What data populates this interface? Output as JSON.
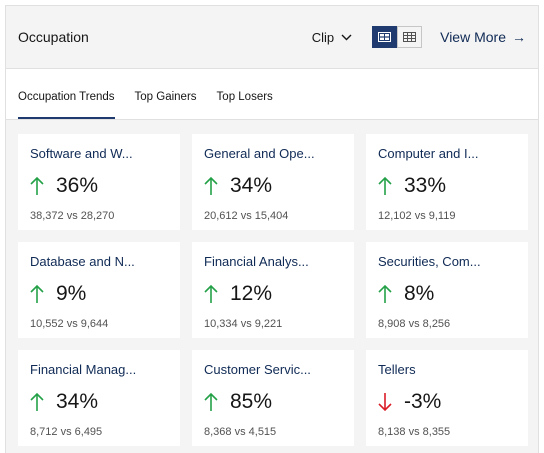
{
  "header": {
    "title": "Occupation",
    "clip_label": "Clip",
    "view_more_label": "View More",
    "arrow_glyph": "→"
  },
  "tabs": [
    {
      "label": "Occupation Trends",
      "active": true
    },
    {
      "label": "Top Gainers",
      "active": false
    },
    {
      "label": "Top Losers",
      "active": false
    }
  ],
  "colors": {
    "accent": "#1f3a6e",
    "up": "#24a148",
    "down": "#da1e28",
    "link": "#0f2a55"
  },
  "cards": [
    {
      "title": "Software and W...",
      "change": "36%",
      "direction": "up",
      "compare": "38,372 vs 28,270"
    },
    {
      "title": "General and Ope...",
      "change": "34%",
      "direction": "up",
      "compare": "20,612 vs 15,404"
    },
    {
      "title": "Computer and I...",
      "change": "33%",
      "direction": "up",
      "compare": "12,102 vs 9,119"
    },
    {
      "title": "Database and N...",
      "change": "9%",
      "direction": "up",
      "compare": "10,552 vs 9,644"
    },
    {
      "title": "Financial Analys...",
      "change": "12%",
      "direction": "up",
      "compare": "10,334 vs 9,221"
    },
    {
      "title": "Securities, Com...",
      "change": "8%",
      "direction": "up",
      "compare": "8,908 vs 8,256"
    },
    {
      "title": "Financial Manag...",
      "change": "34%",
      "direction": "up",
      "compare": "8,712 vs 6,495"
    },
    {
      "title": "Customer Servic...",
      "change": "85%",
      "direction": "up",
      "compare": "8,368 vs 4,515"
    },
    {
      "title": "Tellers",
      "change": "-3%",
      "direction": "down",
      "compare": "8,138 vs 8,355"
    }
  ]
}
